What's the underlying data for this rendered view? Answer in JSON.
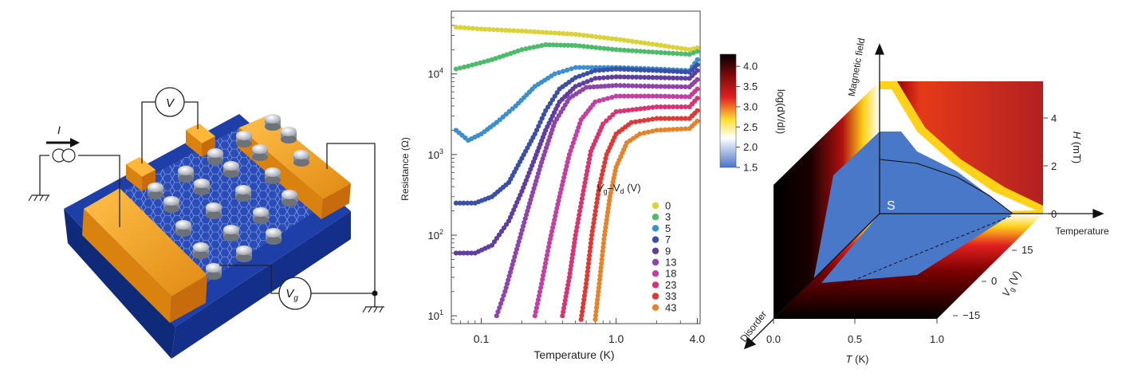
{
  "device": {
    "current_label": "I",
    "voltmeter_label": "V",
    "gate_label_main": "V",
    "gate_label_sub": "g"
  },
  "chart_data": [
    {
      "type": "scatter",
      "scale": "log-log",
      "xlabel": "Temperature (K)",
      "ylabel": "Resistance (Ω)",
      "xlim": [
        0.06,
        4.2
      ],
      "ylim": [
        8,
        60000
      ],
      "x_ticks": [
        {
          "value": 0.1,
          "label": "0.1"
        },
        {
          "value": 1.0,
          "label": "1.0"
        },
        {
          "value": 4.0,
          "label": "4.0"
        }
      ],
      "y_ticks": [
        {
          "value": 10,
          "base": "10",
          "exp": "1"
        },
        {
          "value": 100,
          "base": "10",
          "exp": "2"
        },
        {
          "value": 1000,
          "base": "10",
          "exp": "3"
        },
        {
          "value": 10000,
          "base": "10",
          "exp": "4"
        }
      ],
      "legend_title": {
        "pre": "V",
        "sub1": "g",
        "mid": "–V",
        "sub2": "d",
        "post": " (V)"
      },
      "legend_position": "bottom-right",
      "series": [
        {
          "name": "0",
          "color": "#d9d23a",
          "points": [
            [
              0.065,
              38000
            ],
            [
              0.1,
              36000
            ],
            [
              0.2,
              34000
            ],
            [
              0.5,
              31000
            ],
            [
              1.0,
              27000
            ],
            [
              2.0,
              23000
            ],
            [
              3.5,
              20000
            ],
            [
              4.0,
              21000
            ]
          ]
        },
        {
          "name": "3",
          "color": "#4dbb6a",
          "points": [
            [
              0.065,
              11500
            ],
            [
              0.08,
              12500
            ],
            [
              0.12,
              15000
            ],
            [
              0.2,
              20000
            ],
            [
              0.3,
              23000
            ],
            [
              0.5,
              22500
            ],
            [
              1.0,
              20000
            ],
            [
              2.0,
              18500
            ],
            [
              3.5,
              17500
            ],
            [
              4.0,
              19000
            ]
          ]
        },
        {
          "name": "5",
          "color": "#3a8fcc",
          "points": [
            [
              0.065,
              2000
            ],
            [
              0.08,
              1500
            ],
            [
              0.1,
              1800
            ],
            [
              0.13,
              2500
            ],
            [
              0.18,
              4000
            ],
            [
              0.25,
              7000
            ],
            [
              0.35,
              10000
            ],
            [
              0.5,
              12000
            ],
            [
              1.0,
              12000
            ],
            [
              2.0,
              11500
            ],
            [
              3.5,
              11000
            ],
            [
              4.0,
              15000
            ]
          ]
        },
        {
          "name": "7",
          "color": "#3a4fa8",
          "points": [
            [
              0.065,
              250
            ],
            [
              0.09,
              250
            ],
            [
              0.12,
              300
            ],
            [
              0.16,
              450
            ],
            [
              0.2,
              900
            ],
            [
              0.25,
              1800
            ],
            [
              0.3,
              3500
            ],
            [
              0.38,
              6500
            ],
            [
              0.5,
              9000
            ],
            [
              0.7,
              11000
            ],
            [
              1.0,
              11500
            ],
            [
              2.0,
              11000
            ],
            [
              3.5,
              10500
            ],
            [
              4.0,
              13000
            ]
          ]
        },
        {
          "name": "9",
          "color": "#5e3ea0",
          "points": [
            [
              0.065,
              60
            ],
            [
              0.09,
              60
            ],
            [
              0.12,
              75
            ],
            [
              0.16,
              150
            ],
            [
              0.2,
              350
            ],
            [
              0.25,
              900
            ],
            [
              0.3,
              2000
            ],
            [
              0.38,
              4500
            ],
            [
              0.5,
              7000
            ],
            [
              0.7,
              8800
            ],
            [
              1.0,
              9200
            ],
            [
              2.0,
              9000
            ],
            [
              3.5,
              8800
            ],
            [
              4.0,
              11000
            ]
          ]
        },
        {
          "name": "13",
          "color": "#8e44a8",
          "points": [
            [
              0.13,
              10
            ],
            [
              0.15,
              20
            ],
            [
              0.18,
              60
            ],
            [
              0.22,
              200
            ],
            [
              0.28,
              800
            ],
            [
              0.35,
              2500
            ],
            [
              0.45,
              5000
            ],
            [
              0.6,
              6800
            ],
            [
              1.0,
              7200
            ],
            [
              2.0,
              7000
            ],
            [
              3.5,
              6900
            ],
            [
              4.0,
              8500
            ]
          ]
        },
        {
          "name": "18",
          "color": "#c23fa3",
          "points": [
            [
              0.25,
              10
            ],
            [
              0.28,
              25
            ],
            [
              0.32,
              80
            ],
            [
              0.38,
              300
            ],
            [
              0.45,
              1000
            ],
            [
              0.55,
              2700
            ],
            [
              0.7,
              4500
            ],
            [
              1.0,
              5300
            ],
            [
              2.0,
              5300
            ],
            [
              3.5,
              5200
            ],
            [
              4.0,
              6500
            ]
          ]
        },
        {
          "name": "23",
          "color": "#d63571",
          "points": [
            [
              0.4,
              10
            ],
            [
              0.45,
              30
            ],
            [
              0.5,
              100
            ],
            [
              0.58,
              400
            ],
            [
              0.65,
              1100
            ],
            [
              0.8,
              2400
            ],
            [
              1.0,
              3400
            ],
            [
              2.0,
              3900
            ],
            [
              3.5,
              3900
            ],
            [
              4.0,
              5000
            ]
          ]
        },
        {
          "name": "33",
          "color": "#dd3a35",
          "points": [
            [
              0.55,
              9
            ],
            [
              0.6,
              25
            ],
            [
              0.66,
              100
            ],
            [
              0.75,
              400
            ],
            [
              0.85,
              1000
            ],
            [
              1.0,
              1800
            ],
            [
              1.3,
              2500
            ],
            [
              2.0,
              2800
            ],
            [
              3.5,
              2800
            ],
            [
              4.0,
              3500
            ]
          ]
        },
        {
          "name": "43",
          "color": "#e5832d",
          "points": [
            [
              0.7,
              9
            ],
            [
              0.75,
              25
            ],
            [
              0.82,
              100
            ],
            [
              0.9,
              300
            ],
            [
              1.0,
              700
            ],
            [
              1.2,
              1400
            ],
            [
              1.5,
              1800
            ],
            [
              2.0,
              2000
            ],
            [
              3.5,
              2100
            ],
            [
              4.0,
              2600
            ]
          ]
        }
      ]
    },
    {
      "type": "heatmap",
      "colorbar": {
        "label": "log(dV/dI)",
        "range": [
          1.5,
          4.3
        ],
        "ticks": [
          "4.0",
          "3.5",
          "3.0",
          "2.5",
          "2.0",
          "1.5"
        ]
      },
      "axes": {
        "magnetic_field_label": "Magnetic field",
        "temperature_label": "Temperature",
        "disorder_label": "Disorder",
        "h_axis": {
          "label": "H (mT)",
          "ticks": [
            "4",
            "2",
            "0"
          ]
        },
        "vg_axis": {
          "label": "V_g (V)",
          "ticks": [
            "15",
            "0",
            "−15"
          ]
        },
        "t_axis": {
          "label": "T (K)",
          "ticks": [
            "0.0",
            "0.5",
            "1.0"
          ]
        }
      },
      "region_label": "S"
    }
  ]
}
